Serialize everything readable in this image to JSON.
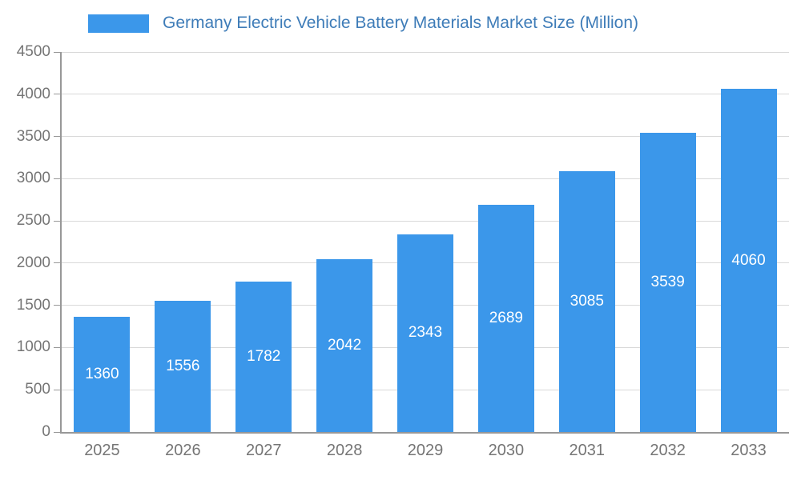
{
  "chart_data": {
    "type": "bar",
    "title": "Germany Electric Vehicle Battery Materials Market Size (Million)",
    "categories": [
      "2025",
      "2026",
      "2027",
      "2028",
      "2029",
      "2030",
      "2031",
      "2032",
      "2033"
    ],
    "values": [
      1360,
      1556,
      1782,
      2042,
      2343,
      2689,
      3085,
      3539,
      4060
    ],
    "xlabel": "",
    "ylabel": "",
    "ylim": [
      0,
      4500
    ],
    "ytick_step": 500,
    "grid": true,
    "legend_position": "top-left",
    "colors": {
      "bar": "#3b97ea",
      "title_text": "#3e7cb8",
      "tick_label": "#757575",
      "gridline": "#d9d9d9",
      "axis_line": "#989898",
      "bar_value_label": "#ffffff",
      "background": "#ffffff"
    }
  }
}
